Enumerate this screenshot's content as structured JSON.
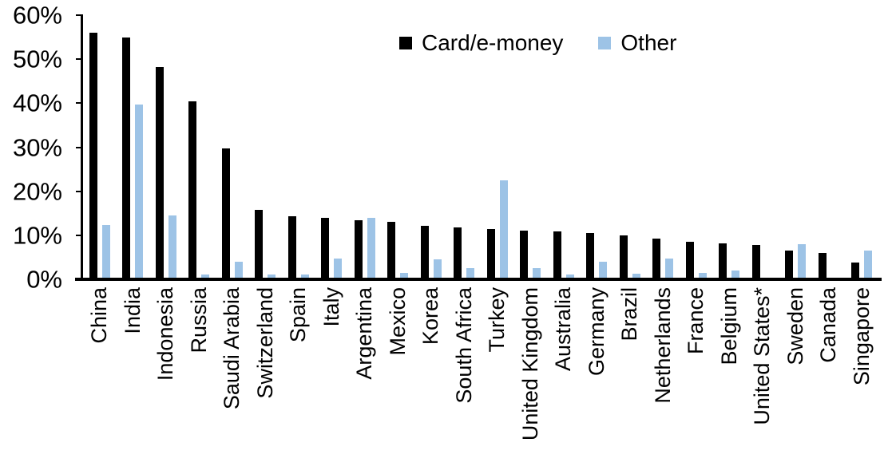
{
  "chart_data": {
    "type": "bar",
    "title": "",
    "xlabel": "",
    "ylabel": "",
    "ylim": [
      0,
      60
    ],
    "grid": false,
    "legend_position": "top-center",
    "background_color": "#FFFFFF",
    "axis_color": "#000000",
    "y_ticks": [
      "0%",
      "10%",
      "20%",
      "30%",
      "40%",
      "50%",
      "60%"
    ],
    "categories": [
      "China",
      "India",
      "Indonesia",
      "Russia",
      "Saudi Arabia",
      "Switzerland",
      "Spain",
      "Italy",
      "Argentina",
      "Mexico",
      "Korea",
      "South Africa",
      "Turkey",
      "United Kingdom",
      "Australia",
      "Germany",
      "Brazil",
      "Netherlands",
      "France",
      "Belgium",
      "United States*",
      "Sweden",
      "Canada",
      "Singapore"
    ],
    "series": [
      {
        "name": "Card/e-money",
        "color": "#000000",
        "values": [
          56.1,
          54.9,
          48.2,
          40.5,
          29.8,
          15.7,
          14.3,
          14.0,
          13.5,
          13.0,
          12.2,
          11.7,
          11.5,
          11.0,
          10.9,
          10.6,
          10.0,
          9.3,
          8.6,
          8.2,
          7.8,
          6.5,
          5.9,
          3.8
        ]
      },
      {
        "name": "Other",
        "color": "#9DC3E6",
        "values": [
          12.3,
          39.7,
          14.5,
          1.1,
          4.0,
          1.0,
          1.1,
          4.7,
          14.0,
          1.5,
          4.6,
          2.5,
          22.4,
          2.6,
          1.1,
          4.0,
          1.2,
          4.8,
          1.5,
          2.0,
          0.2,
          8.0,
          0,
          6.6
        ]
      }
    ]
  }
}
